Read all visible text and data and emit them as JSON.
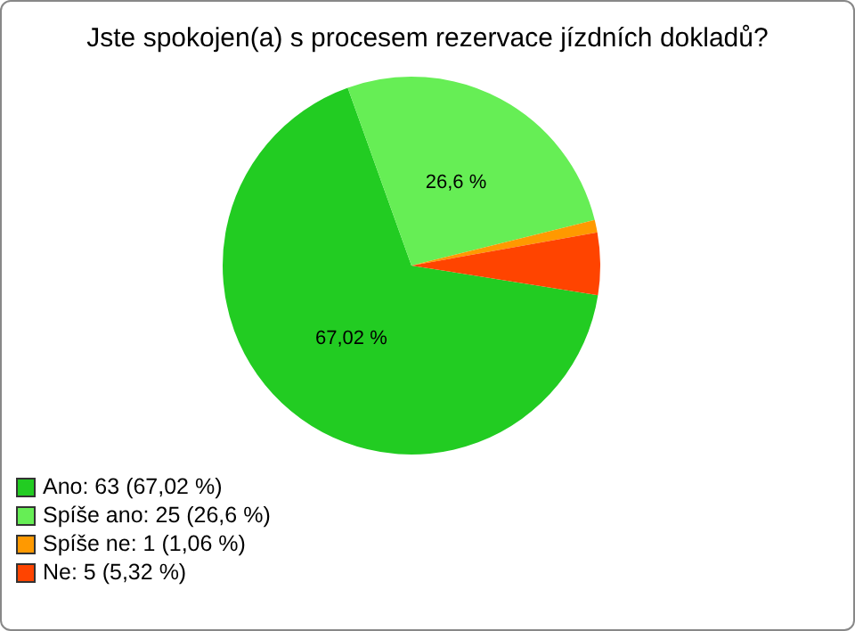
{
  "chart_data": {
    "type": "pie",
    "title": "Jste spokojen(a) s procesem rezervace jízdních dokladů?",
    "categories": [
      "Ano: 63 (67,02 %)",
      "Spíše ano: 25 (26,6 %)",
      "Spíše ne: 1 (1,06 %)",
      "Ne: 5 (5,32 %)"
    ],
    "values": [
      67.02,
      26.6,
      1.06,
      5.32
    ],
    "colors": [
      "#22cc22",
      "#66ee55",
      "#ff9900",
      "#ff4400"
    ],
    "value_labels": [
      "67,02 %",
      "26,6 %",
      null,
      null
    ],
    "legend": "bottom left"
  }
}
